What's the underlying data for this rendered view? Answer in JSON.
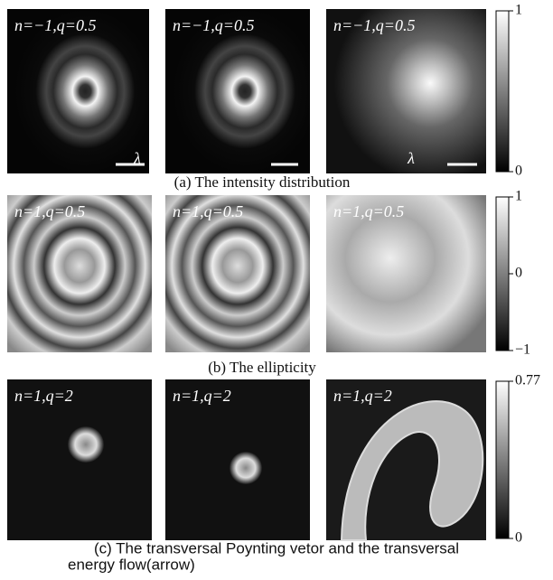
{
  "rows": [
    {
      "panels": [
        {
          "label": "n=−1,q=0.5",
          "scale_label": "λ"
        },
        {
          "label": "n=−1,q=0.5"
        },
        {
          "label": "n=−1,q=0.5",
          "scale_label": "λ"
        }
      ],
      "caption": "(a) The intensity distribution",
      "colorbar": {
        "lim": [
          0,
          1
        ],
        "ticks": [
          1,
          0
        ]
      }
    },
    {
      "panels": [
        {
          "label": "n=1,q=0.5"
        },
        {
          "label": "n=1,q=0.5"
        },
        {
          "label": "n=1,q=0.5"
        }
      ],
      "caption": "(b) The ellipticity",
      "colorbar": {
        "lim": [
          -1,
          1
        ],
        "ticks": [
          1,
          0,
          {
            "value": -1,
            "label": "−1"
          }
        ]
      }
    },
    {
      "panels": [
        {
          "label": "n=1,q=2"
        },
        {
          "label": "n=1,q=2"
        },
        {
          "label": "n=1,q=2"
        }
      ],
      "caption": [
        "(c) The transversal Poynting vetor and the transversal",
        "energy flow(arrow)"
      ],
      "colorbar": {
        "lim": [
          0,
          0.77
        ],
        "ticks": [
          0.77,
          0
        ]
      }
    }
  ]
}
